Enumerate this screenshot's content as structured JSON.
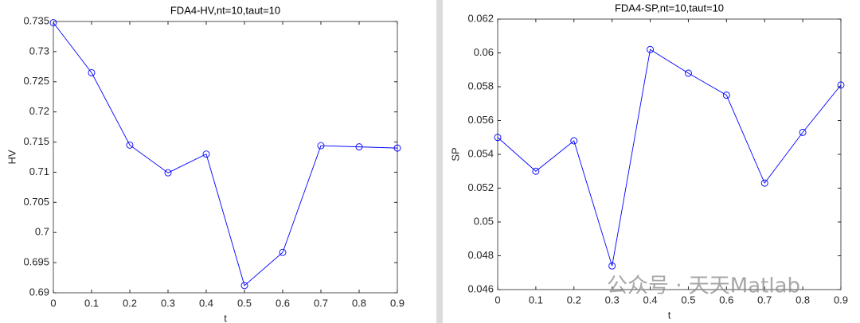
{
  "chart_data": [
    {
      "type": "line",
      "title": "FDA4-HV,nt=10,taut=10",
      "xlabel": "t",
      "ylabel": "HV",
      "x": [
        0,
        0.1,
        0.2,
        0.3,
        0.4,
        0.5,
        0.6,
        0.7,
        0.8,
        0.9
      ],
      "series": [
        {
          "name": "HV",
          "color": "#0000ff",
          "values": [
            0.7348,
            0.7265,
            0.7145,
            0.7099,
            0.713,
            0.6912,
            0.6967,
            0.7144,
            0.7142,
            0.714
          ]
        }
      ],
      "xlim": [
        0,
        0.9
      ],
      "xticks": [
        0,
        0.1,
        0.2,
        0.3,
        0.4,
        0.5,
        0.6,
        0.7,
        0.8,
        0.9
      ],
      "ylim": [
        0.69,
        0.735
      ],
      "yticks": [
        0.69,
        0.695,
        0.7,
        0.705,
        0.71,
        0.715,
        0.72,
        0.725,
        0.73,
        0.735
      ],
      "grid": false,
      "marker": "circle"
    },
    {
      "type": "line",
      "title": "FDA4-SP,nt=10,taut=10",
      "xlabel": "t",
      "ylabel": "SP",
      "x": [
        0,
        0.1,
        0.2,
        0.3,
        0.4,
        0.5,
        0.6,
        0.7,
        0.8,
        0.9
      ],
      "series": [
        {
          "name": "SP",
          "color": "#0000ff",
          "values": [
            0.055,
            0.053,
            0.0548,
            0.0474,
            0.0602,
            0.0588,
            0.0575,
            0.0523,
            0.0553,
            0.0581
          ]
        }
      ],
      "xlim": [
        0,
        0.9
      ],
      "xticks": [
        0,
        0.1,
        0.2,
        0.3,
        0.4,
        0.5,
        0.6,
        0.7,
        0.8,
        0.9
      ],
      "ylim": [
        0.046,
        0.062
      ],
      "yticks": [
        0.046,
        0.048,
        0.05,
        0.052,
        0.054,
        0.056,
        0.058,
        0.06,
        0.062
      ],
      "grid": false,
      "marker": "circle"
    }
  ],
  "watermark": "公众号 · 天天Matlab"
}
